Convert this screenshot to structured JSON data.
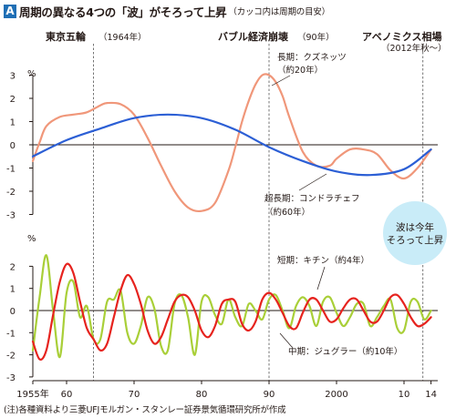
{
  "header": {
    "badge": "A",
    "title": "周期の異なる4つの「波」がそろって上昇",
    "subtitle": "（カッコ内は周期の目安）"
  },
  "footer": {
    "source": "(注)各種資料より三菱UFJモルガン・スタンレー証券景気循環研究所が作成"
  },
  "colors": {
    "kitchin": "#a9cf38",
    "juglar": "#e6231e",
    "kuznets": "#f0977a",
    "kondratieff": "#2c5fd5",
    "event_line": "#555555",
    "callout_bubble": "#c9ecf8"
  },
  "chart_data": [
    {
      "type": "line",
      "panel": "upper",
      "x_range": [
        1955,
        2015
      ],
      "ylim": [
        -3,
        3
      ],
      "yticks": [
        3,
        2,
        1,
        0,
        -1,
        -2,
        -3
      ],
      "y_unit": "%",
      "grid": false,
      "series": [
        {
          "name": "長期：クズネッツ",
          "period_label": "（約20年）",
          "color": "kuznets",
          "x": [
            1955,
            1956,
            1957,
            1959,
            1961,
            1963,
            1965,
            1966,
            1968,
            1970,
            1972,
            1974,
            1976,
            1978,
            1980,
            1982,
            1984,
            1985,
            1986,
            1987,
            1988,
            1989,
            1990,
            1991,
            1992,
            1993,
            1995,
            1997,
            1999,
            2000,
            2002,
            2004,
            2006,
            2008,
            2010,
            2012,
            2014
          ],
          "y": [
            -0.7,
            0.1,
            0.8,
            1.2,
            1.3,
            1.4,
            1.7,
            1.8,
            1.75,
            1.3,
            0.3,
            -0.9,
            -2.0,
            -2.7,
            -2.85,
            -2.5,
            -1.1,
            -0.1,
            1.0,
            1.9,
            2.6,
            3.0,
            3.0,
            2.7,
            2.1,
            1.2,
            -0.3,
            -0.9,
            -0.9,
            -0.6,
            -0.2,
            -0.2,
            -0.4,
            -1.1,
            -1.45,
            -1.0,
            -0.2
          ]
        },
        {
          "name": "超長期：コンドラチェフ",
          "period_label": "（約60年）",
          "color": "kondratieff",
          "x": [
            1955,
            1960,
            1965,
            1970,
            1975,
            1980,
            1985,
            1990,
            1995,
            2000,
            2005,
            2010,
            2014
          ],
          "y": [
            -0.5,
            0.2,
            0.7,
            1.15,
            1.3,
            1.15,
            0.65,
            -0.1,
            -0.7,
            -1.15,
            -1.3,
            -1.05,
            -0.2
          ]
        }
      ]
    },
    {
      "type": "line",
      "panel": "lower",
      "x_range": [
        1955,
        2015
      ],
      "ylim": [
        -3,
        3
      ],
      "yticks": [
        2,
        1,
        0,
        -1,
        -2,
        -3
      ],
      "y_unit": "%",
      "grid": false,
      "xticks": [
        {
          "value": 1955,
          "label": "1955年"
        },
        {
          "value": 1960,
          "label": "60"
        },
        {
          "value": 1970,
          "label": "70"
        },
        {
          "value": 1980,
          "label": "80"
        },
        {
          "value": 1990,
          "label": "90"
        },
        {
          "value": 2000,
          "label": "2000"
        },
        {
          "value": 2010,
          "label": "10"
        },
        {
          "value": 2014,
          "label": "14"
        }
      ],
      "series": [
        {
          "name": "短期：キチン",
          "period_label": "（約4年）",
          "color": "kitchin",
          "x": [
            1955,
            1956,
            1957,
            1958,
            1959,
            1960,
            1961,
            1962,
            1963,
            1964,
            1965,
            1966,
            1967,
            1968,
            1969,
            1970,
            1971,
            1972,
            1973,
            1974,
            1975,
            1976,
            1977,
            1978,
            1979,
            1980,
            1981,
            1982,
            1983,
            1984,
            1985,
            1986,
            1987,
            1988,
            1989,
            1990,
            1991,
            1992,
            1993,
            1994,
            1995,
            1996,
            1997,
            1998,
            1999,
            2000,
            2001,
            2002,
            2003,
            2004,
            2005,
            2006,
            2007,
            2008,
            2009,
            2010,
            2011,
            2012,
            2013,
            2014
          ],
          "y": [
            -1.8,
            0.6,
            2.5,
            0.0,
            -2.1,
            0.8,
            1.3,
            -0.3,
            0.2,
            -1.3,
            -1.3,
            0.4,
            0.5,
            0.9,
            -1.0,
            -1.5,
            -0.7,
            0.6,
            0.1,
            -1.6,
            -1.8,
            0.3,
            0.7,
            -0.3,
            -2.0,
            0.4,
            0.6,
            -0.2,
            -0.6,
            0.5,
            -0.3,
            -0.7,
            0.3,
            0.0,
            -0.4,
            0.5,
            0.7,
            0.0,
            -0.8,
            0.2,
            0.6,
            0.2,
            -0.7,
            0.4,
            0.6,
            -0.1,
            -0.7,
            -0.3,
            0.3,
            0.3,
            -0.7,
            -0.3,
            0.2,
            0.5,
            -0.8,
            -0.9,
            0.4,
            0.4,
            -0.4,
            0.0
          ]
        },
        {
          "name": "中期：ジュグラー",
          "period_label": "（約10年）",
          "color": "juglar",
          "x": [
            1955,
            1956,
            1957,
            1958,
            1959,
            1960,
            1961,
            1962,
            1963,
            1964,
            1965,
            1966,
            1967,
            1968,
            1969,
            1970,
            1971,
            1972,
            1973,
            1974,
            1975,
            1976,
            1977,
            1978,
            1979,
            1980,
            1981,
            1982,
            1983,
            1984,
            1985,
            1986,
            1987,
            1988,
            1989,
            1990,
            1991,
            1992,
            1993,
            1994,
            1995,
            1996,
            1997,
            1998,
            1999,
            2000,
            2001,
            2002,
            2003,
            2004,
            2005,
            2006,
            2007,
            2008,
            2009,
            2010,
            2011,
            2012,
            2013,
            2014
          ],
          "y": [
            -1.4,
            -2.2,
            -1.8,
            -0.2,
            1.3,
            2.1,
            1.7,
            0.4,
            -0.8,
            -1.3,
            -1.8,
            -1.5,
            -0.3,
            0.9,
            1.6,
            1.2,
            0.3,
            -0.9,
            -1.5,
            -1.2,
            -0.4,
            0.4,
            0.7,
            0.6,
            0.0,
            -0.9,
            -1.2,
            -0.7,
            0.3,
            0.5,
            0.4,
            -0.6,
            -0.9,
            -0.5,
            0.5,
            0.8,
            0.5,
            -0.1,
            -0.7,
            -0.8,
            -0.1,
            0.5,
            0.5,
            0.0,
            -0.5,
            -0.4,
            0.1,
            0.5,
            0.5,
            0.0,
            -0.5,
            -0.5,
            0.0,
            0.6,
            0.7,
            0.3,
            -0.3,
            -0.7,
            -0.6,
            -0.3
          ]
        }
      ]
    }
  ],
  "events": [
    {
      "year": 1964,
      "label": "東京五輪",
      "sub": "（1964年）"
    },
    {
      "year": 1990,
      "label": "バブル経済崩壊",
      "sub": "（90年）"
    },
    {
      "year": 2012.8,
      "label": "アベノミクス相場",
      "sub": "（2012年秋～）"
    }
  ],
  "legend_labels": {
    "kuznets_name": "長期：クズネッツ",
    "kuznets_period": "（約20年）",
    "kondratieff_name": "超長期：コンドラチェフ",
    "kondratieff_period": "（約60年）",
    "kitchin": "短期：キチン（約4年）",
    "juglar": "中期：ジュグラー（約10年）"
  },
  "callout": {
    "line1": "波は今年",
    "line2": "そろって上昇"
  },
  "unit_label": "%"
}
